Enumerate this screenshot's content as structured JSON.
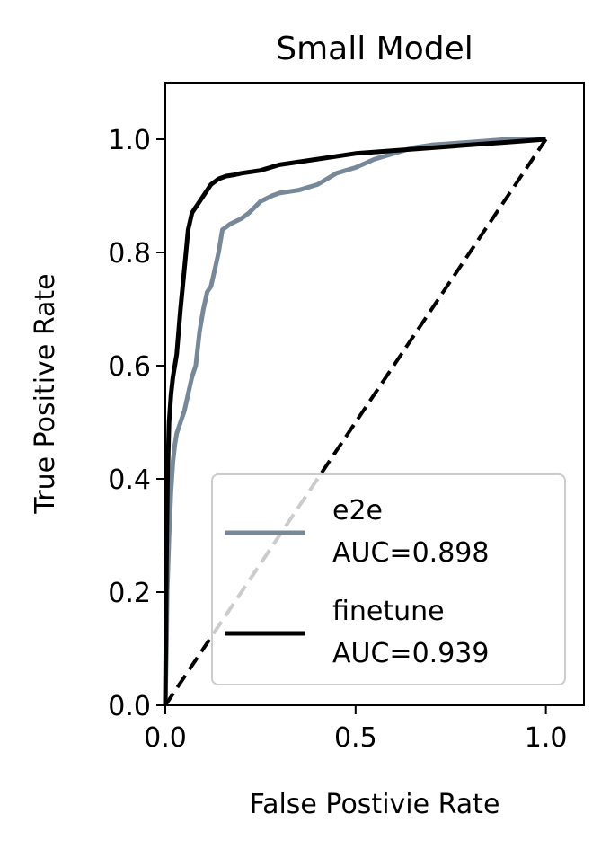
{
  "chart_data": {
    "type": "line",
    "title": "Small Model",
    "xlabel": "False Postivie Rate",
    "ylabel": "True Positive Rate",
    "xlim": [
      0.0,
      1.1
    ],
    "ylim": [
      0.0,
      1.1
    ],
    "xticks": [
      0.0,
      0.5,
      1.0
    ],
    "xtick_labels": [
      "0.0",
      "0.5",
      "1.0"
    ],
    "yticks": [
      0.0,
      0.2,
      0.4,
      0.6,
      0.8,
      1.0
    ],
    "ytick_labels": [
      "0.0",
      "0.2",
      "0.4",
      "0.6",
      "0.8",
      "1.0"
    ],
    "grid": false,
    "legend_position": "lower right",
    "series": [
      {
        "name": "e2e\nAUC=0.898",
        "legend_lines": [
          "e2e",
          "AUC=0.898"
        ],
        "color": "#778899",
        "x": [
          0.0,
          0.003,
          0.005,
          0.01,
          0.015,
          0.02,
          0.025,
          0.03,
          0.04,
          0.05,
          0.06,
          0.07,
          0.08,
          0.09,
          0.1,
          0.11,
          0.12,
          0.13,
          0.14,
          0.15,
          0.17,
          0.2,
          0.22,
          0.25,
          0.28,
          0.3,
          0.35,
          0.4,
          0.45,
          0.5,
          0.55,
          0.6,
          0.65,
          0.7,
          0.8,
          0.9,
          1.0
        ],
        "y": [
          0.0,
          0.1,
          0.2,
          0.3,
          0.38,
          0.43,
          0.46,
          0.48,
          0.5,
          0.52,
          0.55,
          0.58,
          0.6,
          0.66,
          0.7,
          0.73,
          0.74,
          0.77,
          0.8,
          0.84,
          0.85,
          0.86,
          0.87,
          0.89,
          0.9,
          0.905,
          0.91,
          0.92,
          0.94,
          0.95,
          0.965,
          0.975,
          0.985,
          0.99,
          0.995,
          1.0,
          1.0
        ]
      },
      {
        "name": "finetune\nAUC=0.939",
        "legend_lines": [
          "finetune",
          "AUC=0.939"
        ],
        "color": "#000000",
        "x": [
          0.0,
          0.003,
          0.006,
          0.01,
          0.015,
          0.02,
          0.025,
          0.03,
          0.04,
          0.05,
          0.06,
          0.07,
          0.08,
          0.1,
          0.12,
          0.14,
          0.16,
          0.18,
          0.2,
          0.25,
          0.3,
          0.4,
          0.5,
          0.6,
          0.7,
          0.8,
          0.9,
          1.0
        ],
        "y": [
          0.0,
          0.25,
          0.4,
          0.5,
          0.55,
          0.58,
          0.6,
          0.62,
          0.7,
          0.77,
          0.84,
          0.87,
          0.88,
          0.9,
          0.92,
          0.93,
          0.935,
          0.937,
          0.94,
          0.945,
          0.955,
          0.965,
          0.975,
          0.98,
          0.985,
          0.99,
          0.995,
          1.0
        ]
      }
    ],
    "reference_line": {
      "x": [
        0.0,
        1.0
      ],
      "y": [
        0.0,
        1.0
      ],
      "color": "#000000",
      "style": "dashed"
    }
  }
}
